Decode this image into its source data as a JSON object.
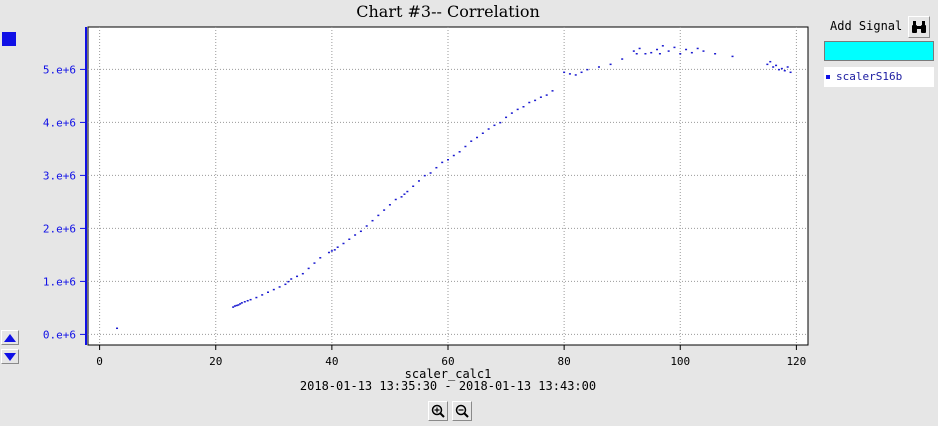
{
  "chart_data": {
    "type": "scatter",
    "title": "Chart #3-- Correlation",
    "xlabel": "scaler_calc1",
    "ylabel": "",
    "time_range": "2018-01-13 13:35:30  - 2018-01-13 13:43:00",
    "xlim": [
      -2,
      122
    ],
    "ylim": [
      -200000,
      5800000
    ],
    "x_ticks": [
      0,
      20,
      40,
      60,
      80,
      100,
      120
    ],
    "x_tick_labels": [
      "0",
      "20",
      "40",
      "60",
      "80",
      "100",
      "120"
    ],
    "y_ticks": [
      0,
      1000000,
      2000000,
      3000000,
      4000000,
      5000000
    ],
    "y_tick_labels": [
      "0.e+6",
      "1.e+6",
      "2.e+6",
      "3.e+6",
      "4.e+6",
      "5.e+6"
    ],
    "grid": true,
    "series": [
      {
        "name": "scalerS16b",
        "color": "#1a1ad0",
        "x": [
          3,
          23,
          23.3,
          23.6,
          23.9,
          24.2,
          24.5,
          25,
          25.5,
          26,
          27,
          28,
          29,
          30,
          31,
          32,
          32.5,
          33,
          34,
          35,
          36,
          37,
          38,
          39.5,
          40,
          40.5,
          41,
          42,
          43,
          44,
          45,
          46,
          47,
          48,
          49,
          50,
          51,
          52,
          52.5,
          53,
          54,
          55,
          56,
          57,
          58,
          59,
          60,
          61,
          62,
          63,
          64,
          65,
          66,
          67,
          68,
          69,
          70,
          71,
          72,
          73,
          74,
          75,
          76,
          77,
          78,
          80,
          81,
          82,
          83,
          84,
          86,
          88,
          90,
          92,
          92.5,
          93,
          94,
          95,
          96,
          96.5,
          97,
          98,
          99,
          100,
          101,
          102,
          103,
          104,
          106,
          109,
          115,
          115.5,
          116,
          116.5,
          117,
          117.5,
          118,
          118.5,
          119
        ],
        "y": [
          120000,
          520000,
          540000,
          550000,
          560000,
          580000,
          600000,
          620000,
          640000,
          660000,
          700000,
          750000,
          800000,
          850000,
          900000,
          950000,
          1000000,
          1050000,
          1100000,
          1150000,
          1250000,
          1350000,
          1450000,
          1550000,
          1580000,
          1600000,
          1650000,
          1720000,
          1800000,
          1880000,
          1950000,
          2050000,
          2150000,
          2250000,
          2350000,
          2450000,
          2550000,
          2600000,
          2650000,
          2700000,
          2800000,
          2900000,
          3000000,
          3050000,
          3150000,
          3250000,
          3300000,
          3380000,
          3450000,
          3550000,
          3650000,
          3720000,
          3800000,
          3880000,
          3950000,
          4000000,
          4100000,
          4180000,
          4250000,
          4300000,
          4380000,
          4420000,
          4480000,
          4520000,
          4600000,
          4950000,
          4920000,
          4900000,
          4950000,
          5000000,
          5050000,
          5100000,
          5200000,
          5350000,
          5300000,
          5400000,
          5300000,
          5320000,
          5380000,
          5300000,
          5450000,
          5350000,
          5420000,
          5300000,
          5380000,
          5320000,
          5400000,
          5350000,
          5300000,
          5250000,
          5100000,
          5150000,
          5050000,
          5080000,
          5000000,
          5020000,
          4980000,
          5050000,
          4950000
        ]
      }
    ]
  },
  "controls": {
    "add_signal_label": "Add Signal",
    "signal_input_value": "",
    "binoculars_icon": "binoculars-icon",
    "scroll_up_icon": "triangle-up-icon",
    "scroll_down_icon": "triangle-down-icon",
    "zoom_in_icon": "zoom-in-icon",
    "zoom_out_icon": "zoom-out-icon"
  }
}
